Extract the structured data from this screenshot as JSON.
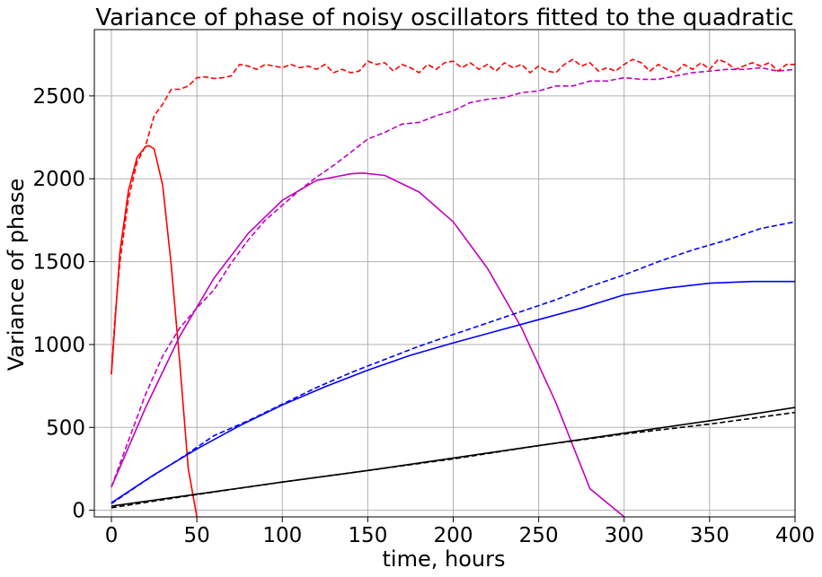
{
  "chart_data": {
    "type": "line",
    "title": "Variance of phase of noisy oscillators fitted to the quadratic",
    "xlabel": "time, hours",
    "ylabel": "Variance of phase",
    "xlim": [
      -10,
      400
    ],
    "ylim": [
      -40,
      2900
    ],
    "x_ticks": [
      0,
      50,
      100,
      150,
      200,
      250,
      300,
      350,
      400
    ],
    "y_ticks": [
      0,
      500,
      1000,
      1500,
      2000,
      2500
    ],
    "grid": true,
    "legend": "none",
    "series": [
      {
        "color": "#ff0000",
        "style": "dashed",
        "kind": "data",
        "x": [
          0,
          2,
          5,
          10,
          15,
          20,
          25,
          30,
          35,
          40,
          45,
          50,
          55,
          60,
          65,
          70,
          75,
          80,
          85,
          90,
          95,
          100,
          105,
          110,
          115,
          120,
          125,
          130,
          135,
          140,
          145,
          150,
          155,
          160,
          165,
          170,
          175,
          180,
          185,
          190,
          195,
          200,
          205,
          210,
          215,
          220,
          225,
          230,
          235,
          240,
          245,
          250,
          255,
          260,
          265,
          270,
          275,
          280,
          285,
          290,
          295,
          300,
          305,
          310,
          315,
          320,
          325,
          330,
          335,
          340,
          345,
          350,
          355,
          360,
          365,
          370,
          375,
          380,
          385,
          390,
          395,
          400
        ],
        "y": [
          820,
          1150,
          1500,
          1880,
          2100,
          2200,
          2380,
          2450,
          2540,
          2540,
          2560,
          2610,
          2615,
          2605,
          2610,
          2620,
          2690,
          2680,
          2660,
          2690,
          2680,
          2670,
          2690,
          2670,
          2680,
          2660,
          2690,
          2640,
          2660,
          2640,
          2650,
          2710,
          2690,
          2700,
          2650,
          2690,
          2670,
          2640,
          2690,
          2660,
          2700,
          2710,
          2670,
          2700,
          2660,
          2690,
          2650,
          2700,
          2670,
          2690,
          2640,
          2680,
          2650,
          2640,
          2690,
          2720,
          2680,
          2700,
          2650,
          2670,
          2650,
          2690,
          2720,
          2700,
          2650,
          2690,
          2660,
          2640,
          2690,
          2660,
          2700,
          2660,
          2720,
          2700,
          2660,
          2680,
          2700,
          2680,
          2700,
          2650,
          2690,
          2690
        ]
      },
      {
        "color": "#ff0000",
        "style": "solid",
        "kind": "fit",
        "x": [
          0,
          5,
          10,
          15,
          20,
          22,
          25,
          30,
          35,
          40,
          45,
          50
        ],
        "y": [
          820,
          1560,
          1930,
          2130,
          2195,
          2200,
          2180,
          1960,
          1480,
          890,
          250,
          -40
        ]
      },
      {
        "color": "#c000c0",
        "style": "dashed",
        "kind": "data",
        "x": [
          0,
          10,
          20,
          30,
          40,
          50,
          60,
          70,
          80,
          90,
          100,
          110,
          120,
          130,
          140,
          150,
          160,
          170,
          180,
          190,
          200,
          210,
          220,
          230,
          240,
          250,
          260,
          270,
          280,
          290,
          300,
          310,
          320,
          330,
          340,
          350,
          360,
          370,
          380,
          390,
          400
        ],
        "y": [
          140,
          420,
          700,
          930,
          1100,
          1220,
          1330,
          1490,
          1630,
          1750,
          1840,
          1930,
          2010,
          2080,
          2160,
          2240,
          2280,
          2330,
          2340,
          2380,
          2410,
          2460,
          2480,
          2490,
          2520,
          2530,
          2560,
          2560,
          2590,
          2590,
          2610,
          2600,
          2600,
          2620,
          2640,
          2650,
          2660,
          2660,
          2670,
          2650,
          2660
        ]
      },
      {
        "color": "#c000c0",
        "style": "solid",
        "kind": "fit",
        "x": [
          0,
          20,
          40,
          60,
          80,
          100,
          120,
          140,
          147,
          160,
          180,
          200,
          220,
          240,
          260,
          280,
          300
        ],
        "y": [
          140,
          620,
          1050,
          1400,
          1670,
          1870,
          1990,
          2030,
          2035,
          2020,
          1920,
          1740,
          1460,
          1100,
          650,
          130,
          -40
        ]
      },
      {
        "color": "#0000ff",
        "style": "dashed",
        "kind": "data",
        "x": [
          0,
          20,
          40,
          60,
          80,
          100,
          120,
          140,
          160,
          180,
          200,
          220,
          240,
          260,
          280,
          300,
          320,
          340,
          360,
          380,
          400
        ],
        "y": [
          40,
          180,
          310,
          450,
          540,
          640,
          740,
          830,
          910,
          990,
          1060,
          1130,
          1200,
          1270,
          1350,
          1420,
          1500,
          1570,
          1630,
          1700,
          1740
        ]
      },
      {
        "color": "#0000ff",
        "style": "solid",
        "kind": "fit",
        "x": [
          0,
          25,
          50,
          75,
          100,
          125,
          150,
          175,
          200,
          225,
          250,
          275,
          300,
          325,
          350,
          375,
          400
        ],
        "y": [
          45,
          215,
          370,
          510,
          635,
          745,
          845,
          935,
          1010,
          1080,
          1150,
          1220,
          1300,
          1340,
          1370,
          1380,
          1380
        ]
      },
      {
        "color": "#000000",
        "style": "dashed",
        "kind": "data",
        "x": [
          0,
          50,
          100,
          150,
          200,
          250,
          300,
          350,
          400
        ],
        "y": [
          15,
          95,
          170,
          240,
          310,
          390,
          460,
          520,
          590
        ]
      },
      {
        "color": "#000000",
        "style": "solid",
        "kind": "fit",
        "x": [
          0,
          50,
          100,
          150,
          200,
          250,
          300,
          350,
          400
        ],
        "y": [
          25,
          97,
          170,
          240,
          315,
          390,
          465,
          540,
          620
        ]
      }
    ]
  }
}
